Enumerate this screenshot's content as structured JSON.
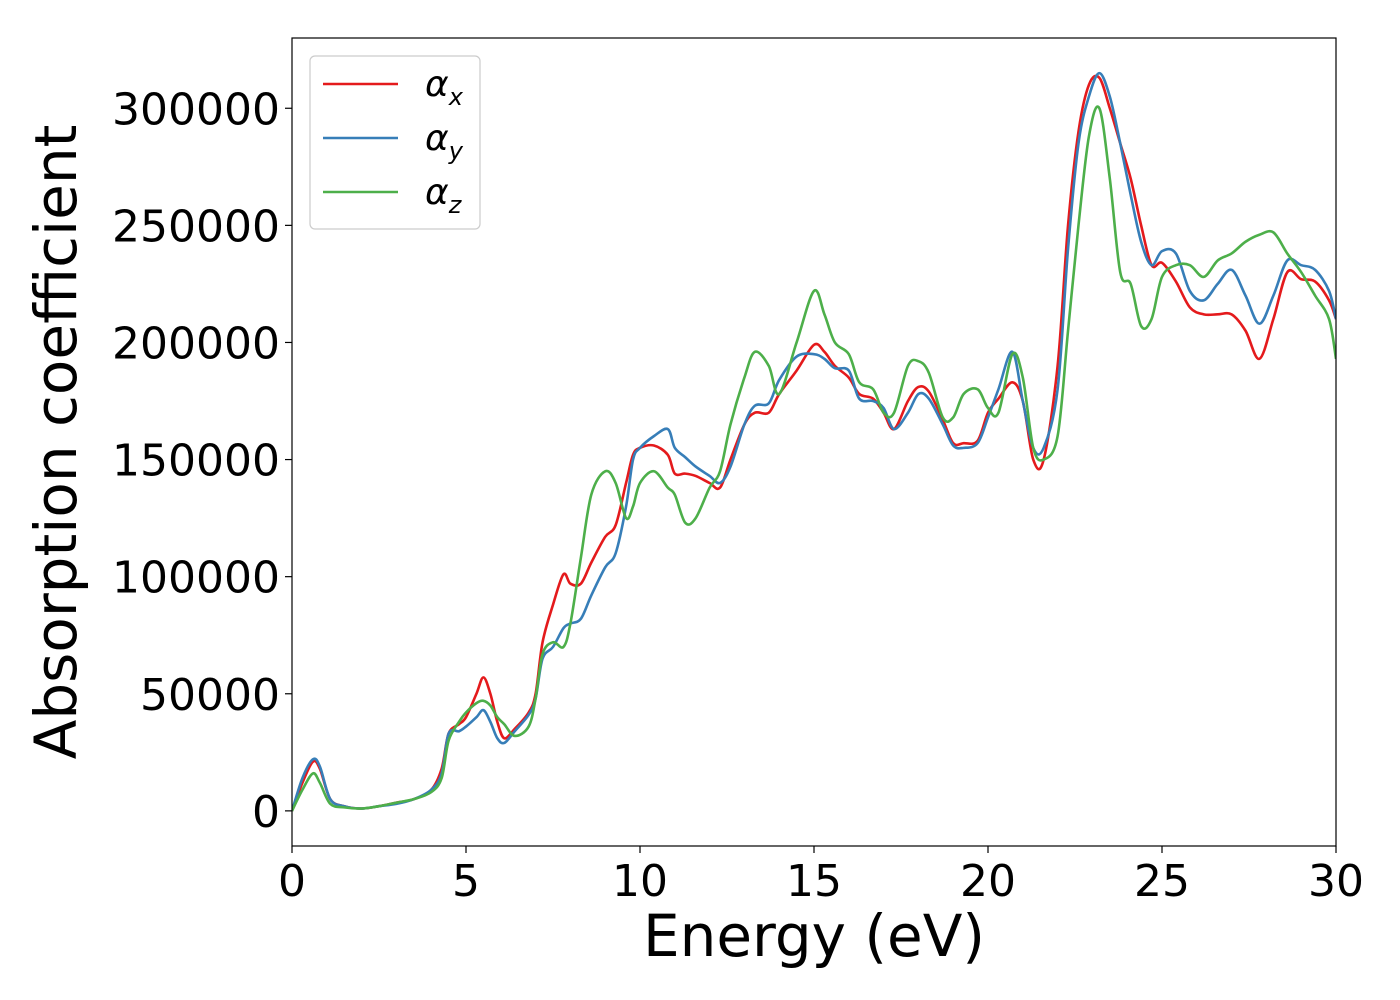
{
  "chart_data": {
    "type": "line",
    "xlabel": "Energy (eV)",
    "ylabel": "Absorption coefficient",
    "xlim": [
      0,
      30
    ],
    "ylim": [
      -15000,
      330000
    ],
    "xticks": [
      0,
      5,
      10,
      15,
      20,
      25,
      30
    ],
    "yticks": [
      0,
      50000,
      100000,
      150000,
      200000,
      250000,
      300000
    ],
    "grid": false,
    "legend_position": "upper-left",
    "series": [
      {
        "name": "α_x",
        "symbol": "α",
        "subscript": "x",
        "color": "#e41a1c",
        "x": [
          0,
          0.3,
          0.6,
          0.8,
          1.1,
          1.5,
          2.0,
          2.5,
          3.0,
          3.5,
          4.0,
          4.3,
          4.5,
          4.8,
          5.0,
          5.3,
          5.5,
          5.7,
          5.9,
          6.1,
          6.4,
          6.8,
          7.0,
          7.2,
          7.5,
          7.8,
          8.0,
          8.3,
          8.6,
          9.0,
          9.3,
          9.6,
          9.8,
          10.0,
          10.4,
          10.8,
          11.0,
          11.3,
          11.6,
          12.0,
          12.3,
          12.6,
          13.0,
          13.3,
          13.7,
          14.0,
          14.5,
          15.0,
          15.3,
          15.6,
          16.0,
          16.3,
          16.7,
          17.0,
          17.3,
          17.7,
          18.0,
          18.3,
          18.7,
          19.0,
          19.3,
          19.7,
          20.0,
          20.3,
          20.7,
          21.0,
          21.3,
          21.6,
          22.0,
          22.3,
          22.6,
          22.9,
          23.2,
          23.5,
          23.8,
          24.1,
          24.4,
          24.7,
          25.0,
          25.4,
          25.8,
          26.2,
          26.6,
          27.0,
          27.4,
          27.8,
          28.2,
          28.6,
          29.0,
          29.4,
          29.8,
          30.0
        ],
        "values": [
          0,
          12000,
          21000,
          18000,
          5000,
          2000,
          1000,
          2000,
          3500,
          5000,
          9000,
          18000,
          33000,
          37000,
          40000,
          50000,
          57000,
          50000,
          38000,
          31000,
          35000,
          42000,
          50000,
          72000,
          88000,
          101000,
          97000,
          97000,
          106000,
          117000,
          122000,
          140000,
          152000,
          155000,
          156000,
          152000,
          144000,
          144000,
          143000,
          140000,
          138000,
          150000,
          165000,
          170000,
          170000,
          178000,
          188000,
          199000,
          196000,
          190000,
          185000,
          178000,
          176000,
          170000,
          163000,
          175000,
          181000,
          179000,
          167000,
          157000,
          157000,
          158000,
          170000,
          176000,
          183000,
          175000,
          150000,
          150000,
          190000,
          250000,
          290000,
          310000,
          313000,
          300000,
          285000,
          270000,
          250000,
          233000,
          234000,
          226000,
          215000,
          212000,
          212000,
          212000,
          205000,
          193000,
          210000,
          230000,
          227000,
          226000,
          218000,
          210000
        ]
      },
      {
        "name": "α_y",
        "symbol": "α",
        "subscript": "y",
        "color": "#377eb8",
        "x": [
          0,
          0.3,
          0.6,
          0.8,
          1.1,
          1.5,
          2.0,
          2.5,
          3.0,
          3.5,
          4.0,
          4.3,
          4.5,
          4.8,
          5.0,
          5.3,
          5.5,
          5.7,
          5.9,
          6.1,
          6.4,
          6.8,
          7.0,
          7.2,
          7.5,
          7.8,
          8.0,
          8.3,
          8.6,
          9.0,
          9.3,
          9.6,
          9.8,
          10.0,
          10.4,
          10.8,
          11.0,
          11.3,
          11.6,
          12.0,
          12.3,
          12.6,
          13.0,
          13.3,
          13.7,
          14.0,
          14.5,
          15.0,
          15.3,
          15.6,
          16.0,
          16.3,
          16.7,
          17.0,
          17.3,
          17.7,
          18.0,
          18.3,
          18.7,
          19.0,
          19.3,
          19.7,
          20.0,
          20.3,
          20.7,
          21.0,
          21.3,
          21.6,
          22.0,
          22.3,
          22.6,
          22.9,
          23.2,
          23.5,
          23.8,
          24.1,
          24.4,
          24.7,
          25.0,
          25.4,
          25.8,
          26.2,
          26.6,
          27.0,
          27.4,
          27.8,
          28.2,
          28.6,
          29.0,
          29.4,
          29.8,
          30.0
        ],
        "values": [
          0,
          14000,
          22000,
          19000,
          5000,
          2000,
          1000,
          2000,
          3000,
          5000,
          9000,
          16000,
          33000,
          34000,
          36000,
          40000,
          43000,
          38000,
          31000,
          29000,
          34000,
          41000,
          48000,
          65000,
          70000,
          78000,
          80000,
          82000,
          92000,
          104000,
          110000,
          130000,
          150000,
          155000,
          160000,
          163000,
          155000,
          151000,
          147000,
          143000,
          140000,
          147000,
          165000,
          173000,
          174000,
          184000,
          194000,
          195000,
          193000,
          189000,
          188000,
          176000,
          175000,
          172000,
          163000,
          170000,
          178000,
          176000,
          165000,
          156000,
          155000,
          157000,
          168000,
          180000,
          196000,
          175000,
          155000,
          155000,
          180000,
          240000,
          285000,
          305000,
          315000,
          305000,
          285000,
          263000,
          243000,
          233000,
          239000,
          238000,
          222000,
          218000,
          225000,
          231000,
          220000,
          208000,
          220000,
          235000,
          233000,
          231000,
          222000,
          210000
        ]
      },
      {
        "name": "α_z",
        "symbol": "α",
        "subscript": "z",
        "color": "#4daf4a",
        "x": [
          0,
          0.3,
          0.6,
          0.8,
          1.1,
          1.5,
          2.0,
          2.5,
          3.0,
          3.5,
          4.0,
          4.3,
          4.5,
          4.8,
          5.0,
          5.3,
          5.5,
          5.7,
          5.9,
          6.1,
          6.4,
          6.8,
          7.0,
          7.2,
          7.5,
          7.8,
          8.0,
          8.3,
          8.6,
          9.0,
          9.3,
          9.6,
          9.8,
          10.0,
          10.4,
          10.8,
          11.0,
          11.3,
          11.6,
          12.0,
          12.3,
          12.6,
          13.0,
          13.3,
          13.7,
          14.0,
          14.5,
          15.0,
          15.3,
          15.6,
          16.0,
          16.3,
          16.7,
          17.0,
          17.3,
          17.7,
          18.0,
          18.3,
          18.7,
          19.0,
          19.3,
          19.7,
          20.0,
          20.3,
          20.7,
          21.0,
          21.3,
          21.6,
          22.0,
          22.3,
          22.6,
          22.9,
          23.2,
          23.5,
          23.8,
          24.1,
          24.4,
          24.7,
          25.0,
          25.4,
          25.8,
          26.2,
          26.6,
          27.0,
          27.4,
          27.8,
          28.2,
          28.6,
          29.0,
          29.4,
          29.8,
          30.0
        ],
        "values": [
          0,
          9000,
          16000,
          12000,
          3000,
          1500,
          1000,
          2000,
          3500,
          5000,
          8000,
          14000,
          30000,
          38000,
          42000,
          46000,
          47000,
          45000,
          40000,
          37000,
          32000,
          36000,
          48000,
          67000,
          72000,
          70000,
          80000,
          108000,
          135000,
          145000,
          140000,
          125000,
          130000,
          140000,
          145000,
          138000,
          135000,
          123000,
          125000,
          138000,
          145000,
          165000,
          185000,
          196000,
          190000,
          178000,
          200000,
          222000,
          212000,
          200000,
          195000,
          183000,
          180000,
          170000,
          170000,
          190000,
          192000,
          187000,
          168000,
          168000,
          178000,
          180000,
          172000,
          170000,
          195000,
          185000,
          155000,
          150000,
          160000,
          205000,
          250000,
          288000,
          300000,
          270000,
          230000,
          225000,
          207000,
          210000,
          228000,
          233000,
          233000,
          228000,
          235000,
          238000,
          243000,
          246000,
          247000,
          238000,
          230000,
          220000,
          210000,
          193000
        ]
      }
    ]
  }
}
